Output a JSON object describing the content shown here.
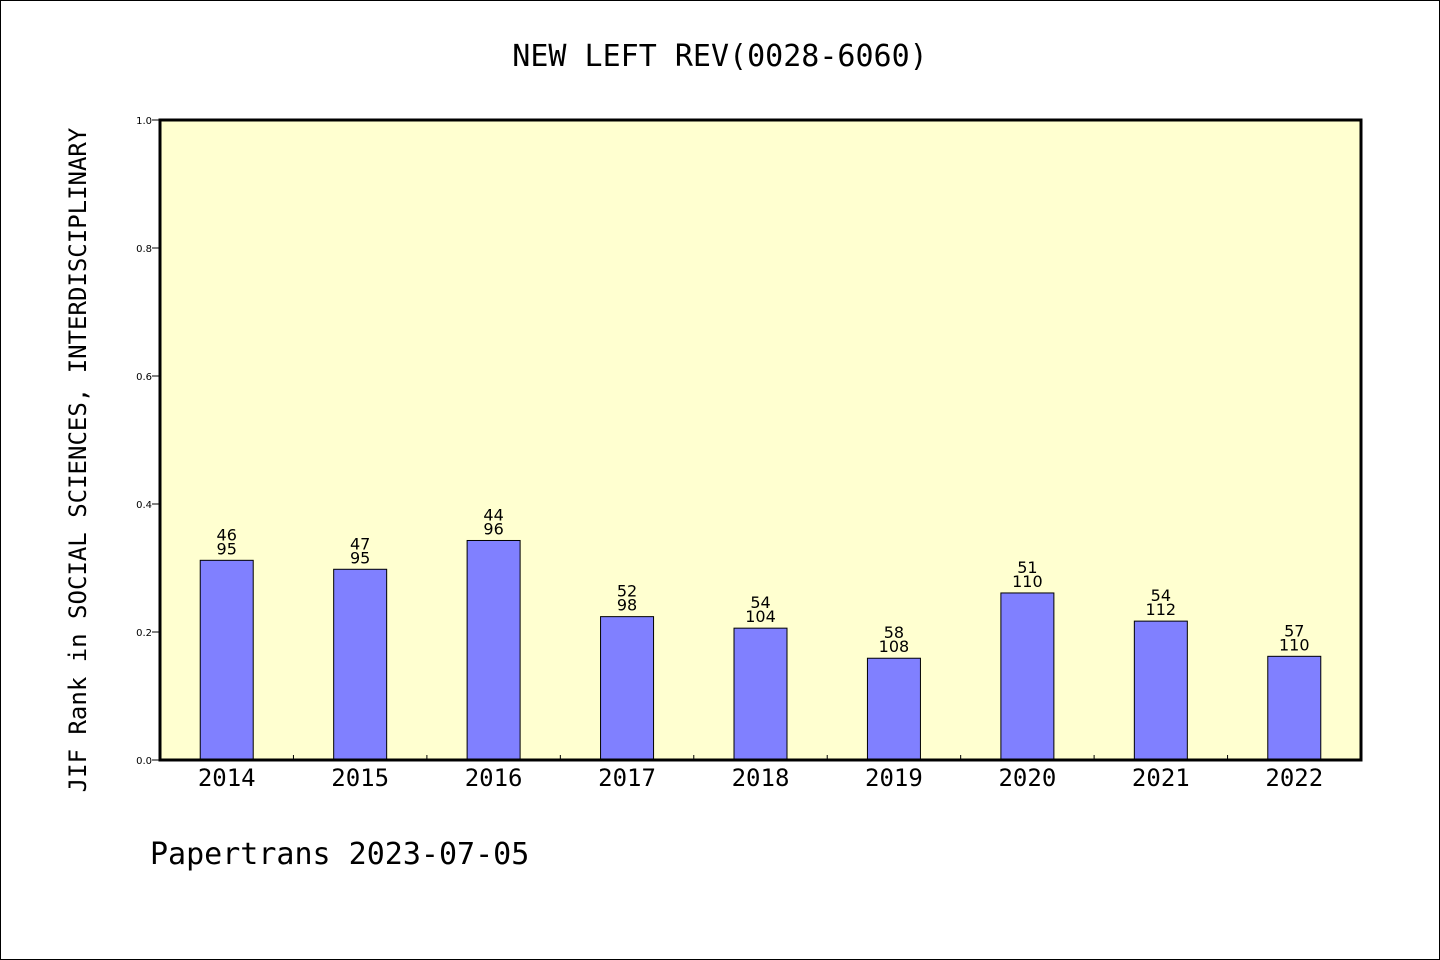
{
  "chart_data": {
    "type": "bar",
    "title": "NEW LEFT REV(0028-6060)",
    "ylabel": "JIF Rank in SOCIAL SCIENCES, INTERDISCIPLINARY",
    "xlabel": "",
    "categories": [
      "2014",
      "2015",
      "2016",
      "2017",
      "2018",
      "2019",
      "2020",
      "2021",
      "2022"
    ],
    "values": [
      0.312,
      0.298,
      0.343,
      0.224,
      0.206,
      0.159,
      0.261,
      0.217,
      0.162
    ],
    "rank": [
      "46",
      "47",
      "44",
      "52",
      "54",
      "58",
      "51",
      "54",
      "57"
    ],
    "total": [
      "95",
      "95",
      "96",
      "98",
      "104",
      "108",
      "110",
      "112",
      "110"
    ],
    "ylim": [
      0,
      1.0
    ],
    "yticks": [
      "0.0",
      "0.2",
      "0.4",
      "0.6",
      "0.8",
      "1.0"
    ],
    "grid": false,
    "colors": {
      "bar": "#8080ff",
      "plot_background": "#ffffd0",
      "bar_edge": "#000000"
    }
  },
  "footer": "Papertrans 2023-07-05"
}
